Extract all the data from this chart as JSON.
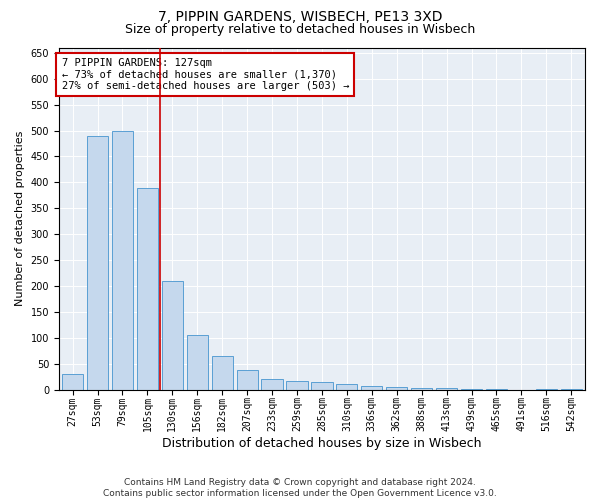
{
  "title1": "7, PIPPIN GARDENS, WISBECH, PE13 3XD",
  "title2": "Size of property relative to detached houses in Wisbech",
  "xlabel": "Distribution of detached houses by size in Wisbech",
  "ylabel": "Number of detached properties",
  "categories": [
    "27sqm",
    "53sqm",
    "79sqm",
    "105sqm",
    "130sqm",
    "156sqm",
    "182sqm",
    "207sqm",
    "233sqm",
    "259sqm",
    "285sqm",
    "310sqm",
    "336sqm",
    "362sqm",
    "388sqm",
    "413sqm",
    "439sqm",
    "465sqm",
    "491sqm",
    "516sqm",
    "542sqm"
  ],
  "values": [
    30,
    490,
    500,
    390,
    210,
    105,
    65,
    38,
    22,
    18,
    15,
    12,
    8,
    5,
    4,
    3,
    2,
    1,
    0,
    1,
    1
  ],
  "bar_color": "#c5d8ed",
  "bar_edge_color": "#5a9fd4",
  "highlight_color": "#cc0000",
  "highlight_bar_index": 4,
  "annotation_text": "7 PIPPIN GARDENS: 127sqm\n← 73% of detached houses are smaller (1,370)\n27% of semi-detached houses are larger (503) →",
  "annotation_box_color": "#cc0000",
  "ylim": [
    0,
    660
  ],
  "yticks": [
    0,
    50,
    100,
    150,
    200,
    250,
    300,
    350,
    400,
    450,
    500,
    550,
    600,
    650
  ],
  "background_color": "#e8eef5",
  "footer_text": "Contains HM Land Registry data © Crown copyright and database right 2024.\nContains public sector information licensed under the Open Government Licence v3.0.",
  "title1_fontsize": 10,
  "title2_fontsize": 9,
  "xlabel_fontsize": 9,
  "ylabel_fontsize": 8,
  "tick_fontsize": 7,
  "annotation_fontsize": 7.5,
  "footer_fontsize": 6.5
}
